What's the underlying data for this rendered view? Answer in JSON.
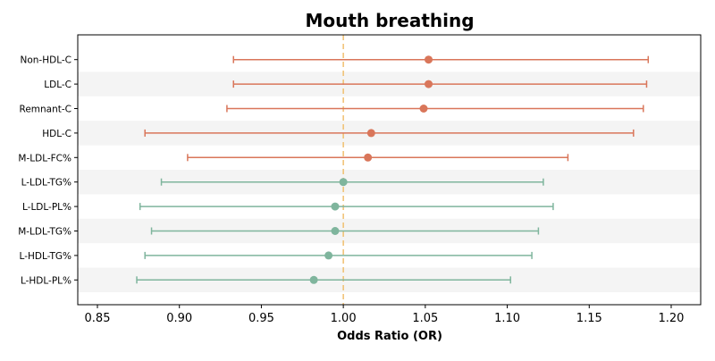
{
  "chart_data": {
    "type": "forest",
    "title": "Mouth breathing",
    "xlabel": "Odds Ratio (OR)",
    "ylabel": "",
    "xlim": [
      0.838,
      1.218
    ],
    "xticks": [
      "0.85",
      "0.90",
      "0.95",
      "1.00",
      "1.05",
      "1.10",
      "1.15",
      "1.20"
    ],
    "reference_line": 1.0,
    "grid": false,
    "categories": [
      "Non-HDL-C",
      "LDL-C",
      "Remnant-C",
      "HDL-C",
      "M-LDL-FC%",
      "L-LDL-TG%",
      "L-LDL-PL%",
      "M-LDL-TG%",
      "L-HDL-TG%",
      "L-HDL-PL%"
    ],
    "estimates": [
      1.052,
      1.052,
      1.049,
      1.017,
      1.015,
      1.0,
      0.995,
      0.995,
      0.991,
      0.982
    ],
    "ci_low": [
      0.933,
      0.933,
      0.929,
      0.879,
      0.905,
      0.889,
      0.876,
      0.883,
      0.879,
      0.874
    ],
    "ci_high": [
      1.186,
      1.185,
      1.183,
      1.177,
      1.137,
      1.122,
      1.128,
      1.119,
      1.115,
      1.102
    ],
    "colors": [
      "#d9765a",
      "#d9765a",
      "#d9765a",
      "#d9765a",
      "#d9765a",
      "#7fb59d",
      "#7fb59d",
      "#7fb59d",
      "#7fb59d",
      "#7fb59d"
    ],
    "reference_color": "#f0c070",
    "stripe_color": "#f4f4f4"
  }
}
